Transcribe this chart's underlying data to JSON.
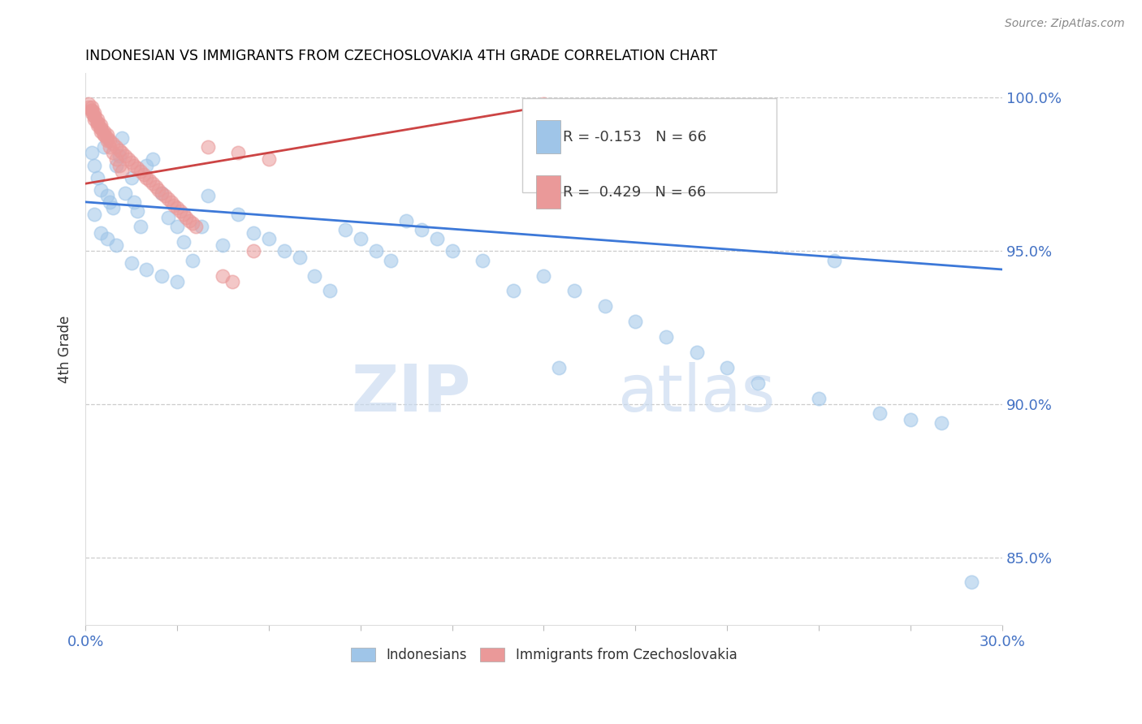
{
  "title": "INDONESIAN VS IMMIGRANTS FROM CZECHOSLOVAKIA 4TH GRADE CORRELATION CHART",
  "source": "Source: ZipAtlas.com",
  "ylabel": "4th Grade",
  "x_min": 0.0,
  "x_max": 0.3,
  "y_min": 0.828,
  "y_max": 1.008,
  "x_ticks": [
    0.0,
    0.03,
    0.06,
    0.09,
    0.12,
    0.15,
    0.18,
    0.21,
    0.24,
    0.27,
    0.3
  ],
  "x_tick_labels_show": [
    "0.0%",
    "30.0%"
  ],
  "y_ticks": [
    0.85,
    0.9,
    0.95,
    1.0
  ],
  "y_tick_labels": [
    "85.0%",
    "90.0%",
    "95.0%",
    "100.0%"
  ],
  "color_blue": "#9fc5e8",
  "color_pink": "#ea9999",
  "line_color_blue": "#3c78d8",
  "line_color_pink": "#cc4444",
  "watermark": "ZIPatlas",
  "blue_trend_x": [
    0.0,
    0.3
  ],
  "blue_trend_y": [
    0.966,
    0.944
  ],
  "pink_trend_x": [
    0.0,
    0.155
  ],
  "pink_trend_y": [
    0.972,
    0.998
  ],
  "blue_scatter_x": [
    0.002,
    0.003,
    0.004,
    0.005,
    0.006,
    0.007,
    0.008,
    0.009,
    0.01,
    0.011,
    0.012,
    0.013,
    0.015,
    0.016,
    0.017,
    0.018,
    0.02,
    0.022,
    0.025,
    0.027,
    0.03,
    0.032,
    0.035,
    0.038,
    0.04,
    0.045,
    0.05,
    0.055,
    0.06,
    0.065,
    0.07,
    0.075,
    0.08,
    0.085,
    0.09,
    0.095,
    0.1,
    0.105,
    0.11,
    0.115,
    0.12,
    0.13,
    0.14,
    0.15,
    0.16,
    0.17,
    0.18,
    0.19,
    0.2,
    0.21,
    0.22,
    0.24,
    0.26,
    0.27,
    0.28,
    0.29,
    0.245,
    0.155,
    0.003,
    0.005,
    0.007,
    0.01,
    0.015,
    0.02,
    0.025,
    0.03
  ],
  "blue_scatter_y": [
    0.982,
    0.978,
    0.974,
    0.97,
    0.984,
    0.968,
    0.966,
    0.964,
    0.978,
    0.981,
    0.987,
    0.969,
    0.974,
    0.966,
    0.963,
    0.958,
    0.978,
    0.98,
    0.969,
    0.961,
    0.958,
    0.953,
    0.947,
    0.958,
    0.968,
    0.952,
    0.962,
    0.956,
    0.954,
    0.95,
    0.948,
    0.942,
    0.937,
    0.957,
    0.954,
    0.95,
    0.947,
    0.96,
    0.957,
    0.954,
    0.95,
    0.947,
    0.937,
    0.942,
    0.937,
    0.932,
    0.927,
    0.922,
    0.917,
    0.912,
    0.907,
    0.902,
    0.897,
    0.895,
    0.894,
    0.842,
    0.947,
    0.912,
    0.962,
    0.956,
    0.954,
    0.952,
    0.946,
    0.944,
    0.942,
    0.94
  ],
  "pink_scatter_x": [
    0.001,
    0.001,
    0.002,
    0.002,
    0.002,
    0.003,
    0.003,
    0.003,
    0.004,
    0.004,
    0.004,
    0.005,
    0.005,
    0.005,
    0.006,
    0.006,
    0.007,
    0.007,
    0.008,
    0.009,
    0.01,
    0.011,
    0.012,
    0.013,
    0.014,
    0.015,
    0.016,
    0.017,
    0.018,
    0.019,
    0.02,
    0.021,
    0.022,
    0.023,
    0.024,
    0.025,
    0.026,
    0.027,
    0.028,
    0.029,
    0.03,
    0.031,
    0.032,
    0.033,
    0.034,
    0.035,
    0.036,
    0.15,
    0.155,
    0.05,
    0.06,
    0.04,
    0.045,
    0.048,
    0.055,
    0.002,
    0.003,
    0.004,
    0.005,
    0.006,
    0.007,
    0.008,
    0.009,
    0.01,
    0.011,
    0.012
  ],
  "pink_scatter_y": [
    0.998,
    0.997,
    0.997,
    0.996,
    0.995,
    0.995,
    0.994,
    0.993,
    0.993,
    0.992,
    0.991,
    0.991,
    0.99,
    0.989,
    0.989,
    0.988,
    0.988,
    0.987,
    0.986,
    0.985,
    0.984,
    0.983,
    0.982,
    0.981,
    0.98,
    0.979,
    0.978,
    0.977,
    0.976,
    0.975,
    0.974,
    0.973,
    0.972,
    0.971,
    0.97,
    0.969,
    0.968,
    0.967,
    0.966,
    0.965,
    0.964,
    0.963,
    0.962,
    0.961,
    0.96,
    0.959,
    0.958,
    0.998,
    0.997,
    0.982,
    0.98,
    0.984,
    0.942,
    0.94,
    0.95,
    0.996,
    0.994,
    0.992,
    0.99,
    0.988,
    0.986,
    0.984,
    0.982,
    0.98,
    0.978,
    0.976
  ]
}
